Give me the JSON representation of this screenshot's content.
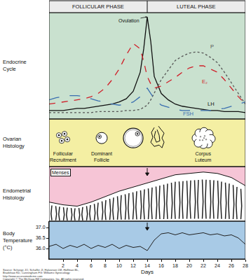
{
  "phases": [
    {
      "label": "FOLLICULAR PHASE",
      "start": 0,
      "end": 14
    },
    {
      "label": "LUTEAL PHASE",
      "start": 14,
      "end": 28
    }
  ],
  "chart_data": [
    {
      "type": "line",
      "title": "Endocrine Cycle",
      "x": [
        0,
        1,
        2,
        3,
        4,
        5,
        6,
        7,
        8,
        9,
        10,
        11,
        12,
        13,
        13.5,
        14,
        14.5,
        15,
        16,
        17,
        18,
        19,
        20,
        21,
        22,
        23,
        24,
        25,
        26,
        27,
        28
      ],
      "series": [
        {
          "name": "LH",
          "color": "#111111",
          "line_style": "solid",
          "values": [
            8,
            8,
            8,
            9,
            10,
            10,
            11,
            12,
            13,
            14,
            16,
            19,
            26,
            44,
            66,
            96,
            73,
            40,
            24,
            18,
            14,
            12,
            11,
            10,
            9,
            8,
            8,
            7,
            7,
            7,
            6
          ]
        },
        {
          "name": "E₂",
          "color": "#d0202a",
          "line_style": "dash",
          "values": [
            14,
            15,
            16,
            17,
            18,
            19,
            21,
            24,
            29,
            37,
            47,
            60,
            71,
            66,
            54,
            40,
            33,
            29,
            31,
            35,
            39,
            44,
            48,
            50,
            50,
            47,
            44,
            37,
            29,
            21,
            14
          ]
        },
        {
          "name": "P",
          "color": "#555555",
          "line_style": "dot",
          "values": [
            6,
            6,
            6,
            6,
            6,
            6,
            6,
            7,
            7,
            7,
            7,
            8,
            8,
            9,
            11,
            13,
            18,
            24,
            37,
            46,
            55,
            59,
            62,
            63,
            62,
            58,
            53,
            44,
            34,
            24,
            14
          ]
        },
        {
          "name": "FSH",
          "color": "#3a6fb0",
          "line_style": "longdash",
          "values": [
            18,
            20,
            21,
            22,
            22,
            21,
            19,
            17,
            16,
            14,
            13,
            14,
            16,
            21,
            25,
            29,
            24,
            19,
            13,
            11,
            9,
            8,
            8,
            8,
            8,
            8,
            9,
            10,
            12,
            14,
            16
          ]
        }
      ],
      "ylim": [
        0,
        100
      ],
      "tick_labels": false,
      "annotations": [
        {
          "text": "Ovulation",
          "x": 14,
          "y": 96
        }
      ]
    },
    {
      "type": "area",
      "title": "Endometrial Histology",
      "x": [
        0,
        2,
        4,
        6,
        8,
        10,
        12,
        14,
        16,
        18,
        20,
        22,
        24,
        26,
        28
      ],
      "values": [
        3.5,
        3,
        2.75,
        3.5,
        4.5,
        5.5,
        6.25,
        7,
        7.75,
        8.5,
        8.75,
        9,
        8.75,
        8,
        6.5
      ],
      "ylim": [
        0,
        10
      ],
      "tick_labels": false,
      "annotations": [
        {
          "text": "Menses"
        }
      ]
    },
    {
      "type": "line",
      "title": "Body Temperature (°C)",
      "xlabel": "Days",
      "color": "#222222",
      "x": [
        0,
        1,
        2,
        3,
        4,
        5,
        6,
        7,
        8,
        9,
        10,
        11,
        12,
        13,
        14,
        15,
        16,
        17,
        18,
        19,
        20,
        21,
        22,
        23,
        24,
        25,
        26,
        27,
        28
      ],
      "values": [
        36.1,
        36.2,
        36.0,
        36.15,
        36.05,
        36.2,
        36.0,
        36.15,
        36.05,
        36.2,
        36.0,
        36.15,
        36.05,
        36.1,
        35.9,
        36.4,
        36.7,
        36.75,
        36.65,
        36.75,
        36.65,
        36.7,
        36.75,
        36.65,
        36.7,
        36.6,
        36.65,
        36.5,
        36.2
      ],
      "xlim": [
        0,
        28
      ],
      "xticks": [
        2,
        4,
        6,
        8,
        10,
        12,
        14,
        16,
        18,
        20,
        22,
        24,
        26,
        28
      ],
      "ylim": [
        35.5,
        37.3
      ],
      "yticks": [
        {
          "value": 36,
          "label": "36.0"
        },
        36.5,
        {
          "value": 37,
          "label": "37.0"
        }
      ]
    }
  ],
  "ovarian_histology": {
    "title": "Ovarian Histology",
    "stages": [
      {
        "day": 2,
        "label": "Follicular Recruitment"
      },
      {
        "day": 7.5,
        "label": "Dominant Follicle"
      },
      {
        "day": 12
      },
      {
        "day": 15.5
      },
      {
        "day": 22,
        "label": "Corpus Luteum"
      }
    ]
  },
  "source": [
    "Source: Schorge JO, Schaffer JI, Halvorson LM, Hoffman BL,",
    "Bradshaw KD, Cunningham FG: Williams Gynecology:",
    "http://www.accessmedicine.com"
  ],
  "copyright": "Copyright © The McGraw-Hill Companies, Inc. All rights reserved."
}
